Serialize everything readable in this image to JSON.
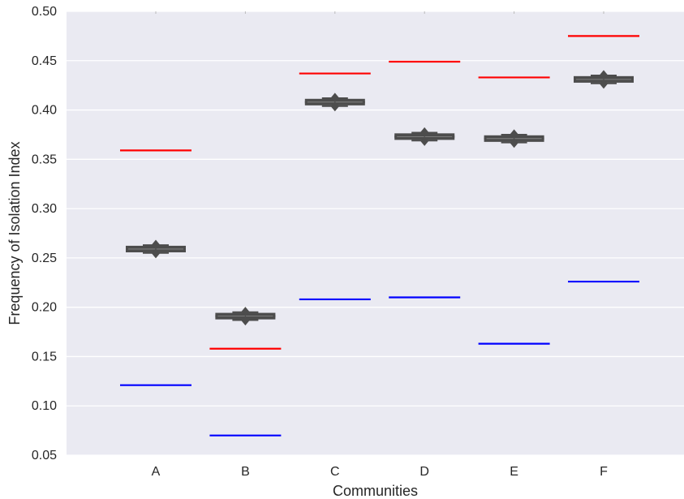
{
  "chart_data": {
    "type": "box",
    "title": "",
    "xlabel": "Communities",
    "ylabel": "Frequency of Isolation Index",
    "ylim": [
      0.05,
      0.5
    ],
    "yticks": [
      "0.05",
      "0.10",
      "0.15",
      "0.20",
      "0.25",
      "0.30",
      "0.35",
      "0.40",
      "0.45",
      "0.50"
    ],
    "categories": [
      "A",
      "B",
      "C",
      "D",
      "E",
      "F"
    ],
    "grid": true,
    "background": "#eaeaf2",
    "box_color": "#4d4d4d",
    "upper_color": "#ff0000",
    "lower_color": "#0000ff",
    "boxes": [
      {
        "category": "A",
        "median": 0.259,
        "q1": 0.2565,
        "q3": 0.2615,
        "whisker_low": 0.255,
        "whisker_high": 0.263,
        "outlier_low": 0.2545,
        "outlier_high": 0.2635
      },
      {
        "category": "B",
        "median": 0.191,
        "q1": 0.1885,
        "q3": 0.1935,
        "whisker_low": 0.187,
        "whisker_high": 0.195,
        "outlier_low": 0.1865,
        "outlier_high": 0.1955
      },
      {
        "category": "C",
        "median": 0.408,
        "q1": 0.4055,
        "q3": 0.4105,
        "whisker_low": 0.404,
        "whisker_high": 0.412,
        "outlier_low": 0.4035,
        "outlier_high": 0.4125
      },
      {
        "category": "D",
        "median": 0.373,
        "q1": 0.3705,
        "q3": 0.3755,
        "whisker_low": 0.369,
        "whisker_high": 0.377,
        "outlier_low": 0.3685,
        "outlier_high": 0.3775
      },
      {
        "category": "E",
        "median": 0.371,
        "q1": 0.3685,
        "q3": 0.3735,
        "whisker_low": 0.367,
        "whisker_high": 0.375,
        "outlier_low": 0.3665,
        "outlier_high": 0.3755
      },
      {
        "category": "F",
        "median": 0.431,
        "q1": 0.4285,
        "q3": 0.4335,
        "whisker_low": 0.427,
        "whisker_high": 0.435,
        "outlier_low": 0.4265,
        "outlier_high": 0.4355
      }
    ],
    "upper_lines": [
      0.359,
      0.158,
      0.437,
      0.449,
      0.433,
      0.475
    ],
    "lower_lines": [
      0.121,
      0.07,
      0.208,
      0.21,
      0.163,
      0.226
    ]
  }
}
